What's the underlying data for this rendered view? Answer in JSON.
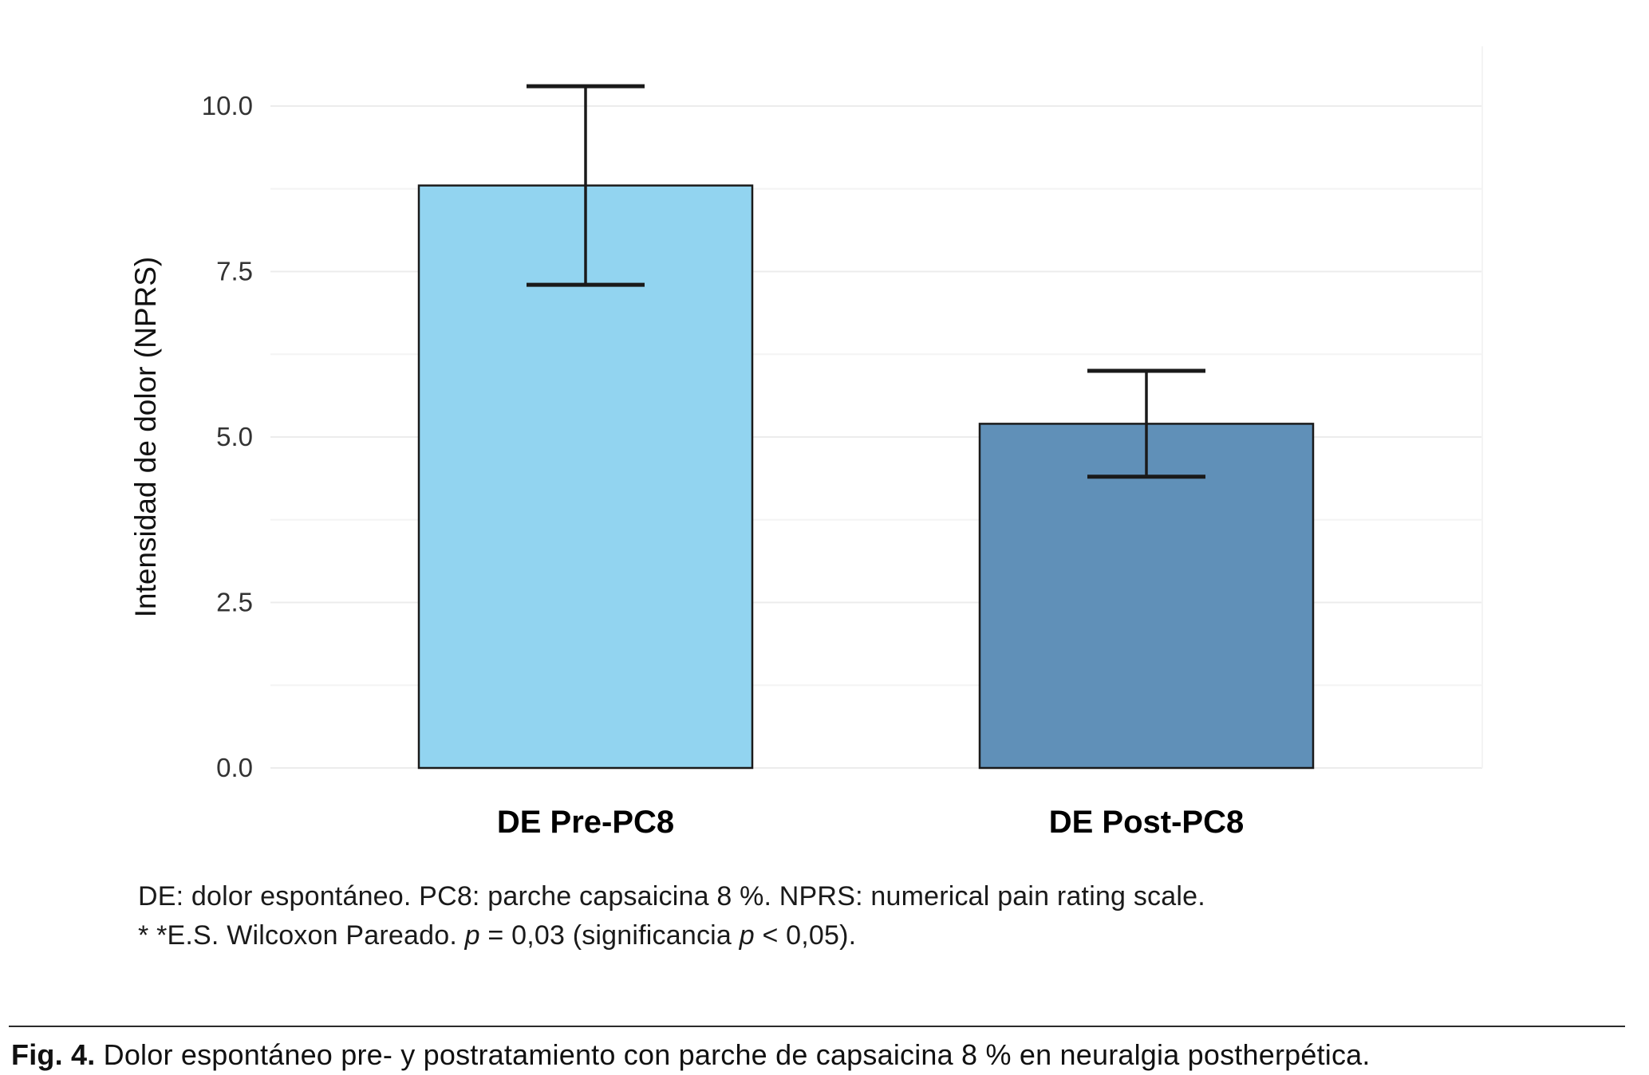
{
  "chart_data": {
    "type": "bar",
    "categories": [
      "DE Pre-PC8",
      "DE Post-PC8"
    ],
    "values": [
      8.8,
      5.2
    ],
    "error_low": [
      7.3,
      4.4
    ],
    "error_high": [
      10.3,
      6.0
    ],
    "bar_colors": [
      "#92D4F0",
      "#6090B8"
    ],
    "bar_stroke": "#1a1a1a",
    "title": "",
    "xlabel": "",
    "ylabel": "Intensidad de dolor (NPRS)",
    "yticks": [
      0.0,
      2.5,
      5.0,
      7.5,
      10.0
    ],
    "ytick_labels": [
      "0.0",
      "2.5",
      "5.0",
      "7.5",
      "10.0"
    ],
    "ylim": [
      0,
      10
    ],
    "grid": true,
    "grid_color": "#ececec",
    "minor_grid_color": "#f4f4f4",
    "legend": "none"
  },
  "footnotes": {
    "line1": "DE: dolor espontáneo. PC8: parche capsaicina 8 %. NPRS: numerical pain rating scale.",
    "line2_prefix": "* *E.S. Wilcoxon Pareado. ",
    "line2_p1": "p",
    "line2_mid": " = 0,03 (significancia ",
    "line2_p2": "p",
    "line2_suffix": " < 0,05)."
  },
  "caption": {
    "label": "Fig. 4.",
    "text": " Dolor espontáneo pre- y postratamiento con parche de capsaicina 8 % en neuralgia postherpética."
  }
}
